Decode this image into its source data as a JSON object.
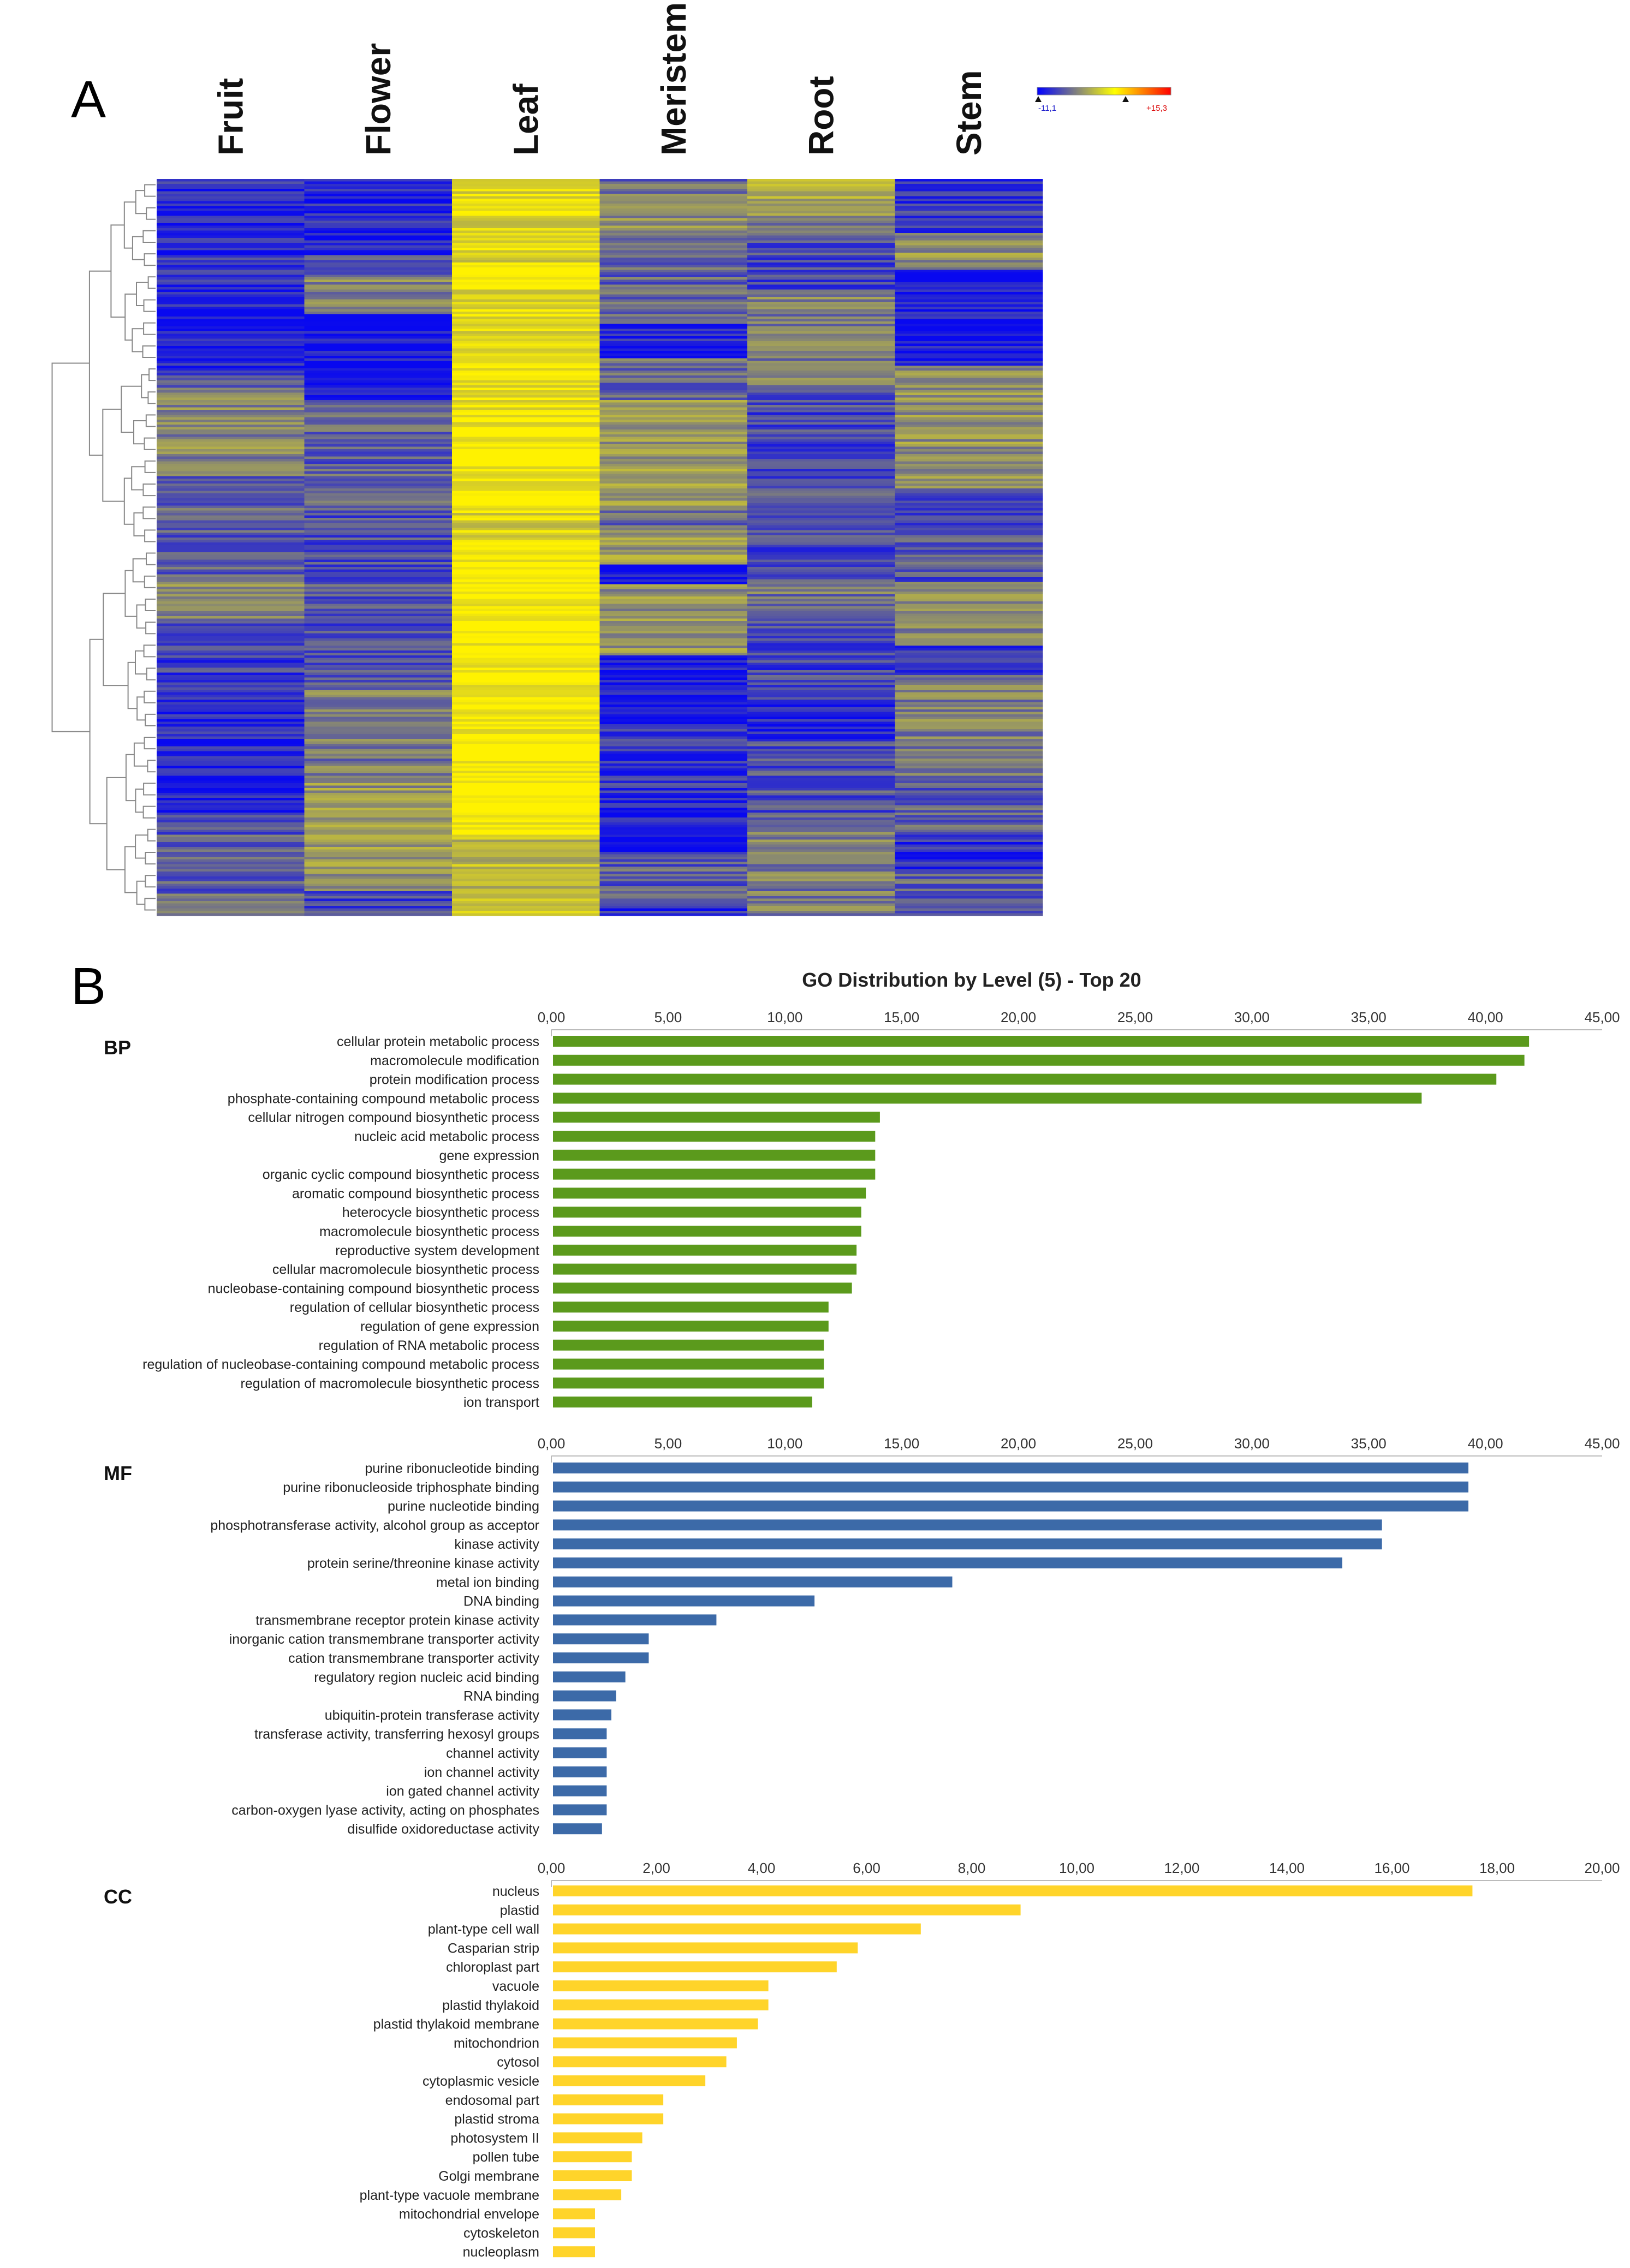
{
  "panel_a": {
    "label": "A",
    "columns": [
      "Fruit",
      "Flower",
      "Leaf",
      "Meristem",
      "Root",
      "Stem"
    ],
    "legend": {
      "min_label": "-11,1",
      "max_label": "+15,3",
      "min": -11.1,
      "max": 15.3,
      "colors": [
        "#0000ff",
        "#ffff00",
        "#ff0000"
      ]
    },
    "column_levels": [
      0.22,
      0.3,
      0.95,
      0.32,
      0.35,
      0.3
    ],
    "colors": {
      "low": "#0808f0",
      "mid": "#8c8c6e",
      "high": "#fff200"
    }
  },
  "panel_b": {
    "label": "B",
    "title": "GO Distribution by Level (5) - Top 20"
  },
  "chart_data": [
    {
      "type": "bar",
      "orientation": "horizontal",
      "group": "BP",
      "title": "GO Distribution by Level (5) - Top 20",
      "color": "#5b9a1c",
      "xlim": [
        0,
        45
      ],
      "ticks": [
        "0,00",
        "5,00",
        "10,00",
        "15,00",
        "20,00",
        "25,00",
        "30,00",
        "35,00",
        "40,00",
        "45,00"
      ],
      "categories": [
        "cellular protein metabolic process",
        "macromolecule modification",
        "protein modification process",
        "phosphate-containing compound metabolic process",
        "cellular nitrogen compound biosynthetic process",
        "nucleic acid metabolic process",
        "gene expression",
        "organic cyclic compound biosynthetic process",
        "aromatic compound biosynthetic process",
        "heterocycle biosynthetic process",
        "macromolecule biosynthetic process",
        "reproductive system development",
        "cellular macromolecule biosynthetic process",
        "nucleobase-containing compound biosynthetic process",
        "regulation of cellular biosynthetic process",
        "regulation of gene expression",
        "regulation of RNA metabolic process",
        "regulation of nucleobase-containing compound metabolic process",
        "regulation of macromolecule biosynthetic process",
        "ion transport"
      ],
      "values": [
        41.8,
        41.6,
        40.4,
        37.2,
        14.0,
        13.8,
        13.8,
        13.8,
        13.4,
        13.2,
        13.2,
        13.0,
        13.0,
        12.8,
        11.8,
        11.8,
        11.6,
        11.6,
        11.6,
        11.1
      ]
    },
    {
      "type": "bar",
      "orientation": "horizontal",
      "group": "MF",
      "color": "#3c6aa8",
      "xlim": [
        0,
        45
      ],
      "ticks": [
        "0,00",
        "5,00",
        "10,00",
        "15,00",
        "20,00",
        "25,00",
        "30,00",
        "35,00",
        "40,00",
        "45,00"
      ],
      "categories": [
        "purine ribonucleotide binding",
        "purine ribonucleoside triphosphate binding",
        "purine nucleotide binding",
        "phosphotransferase activity, alcohol group as acceptor",
        "kinase activity",
        "protein serine/threonine kinase activity",
        "metal ion binding",
        "DNA binding",
        "transmembrane receptor protein kinase activity",
        "inorganic cation transmembrane transporter activity",
        "cation transmembrane transporter activity",
        "regulatory region nucleic acid binding",
        "RNA binding",
        "ubiquitin-protein transferase activity",
        "transferase activity, transferring hexosyl groups",
        "channel activity",
        "ion channel activity",
        "ion gated channel activity",
        "carbon-oxygen lyase activity, acting on phosphates",
        "disulfide oxidoreductase activity"
      ],
      "values": [
        39.2,
        39.2,
        39.2,
        35.5,
        35.5,
        33.8,
        17.1,
        11.2,
        7.0,
        4.1,
        4.1,
        3.1,
        2.7,
        2.5,
        2.3,
        2.3,
        2.3,
        2.3,
        2.3,
        2.1
      ]
    },
    {
      "type": "bar",
      "orientation": "horizontal",
      "group": "CC",
      "color": "#ffd42a",
      "xlim": [
        0,
        20
      ],
      "ticks": [
        "0,00",
        "2,00",
        "4,00",
        "6,00",
        "8,00",
        "10,00",
        "12,00",
        "14,00",
        "16,00",
        "18,00",
        "20,00"
      ],
      "categories": [
        "nucleus",
        "plastid",
        "plant-type cell wall",
        "Casparian strip",
        "chloroplast part",
        "vacuole",
        "plastid thylakoid",
        "plastid thylakoid membrane",
        "mitochondrion",
        "cytosol",
        "cytoplasmic vesicle",
        "endosomal part",
        "plastid stroma",
        "photosystem II",
        "pollen tube",
        "Golgi membrane",
        "plant-type vacuole membrane",
        "mitochondrial envelope",
        "cytoskeleton",
        "nucleoplasm"
      ],
      "values": [
        17.5,
        8.9,
        7.0,
        5.8,
        5.4,
        4.1,
        4.1,
        3.9,
        3.5,
        3.3,
        2.9,
        2.1,
        2.1,
        1.7,
        1.5,
        1.5,
        1.3,
        0.8,
        0.8,
        0.8
      ]
    }
  ]
}
